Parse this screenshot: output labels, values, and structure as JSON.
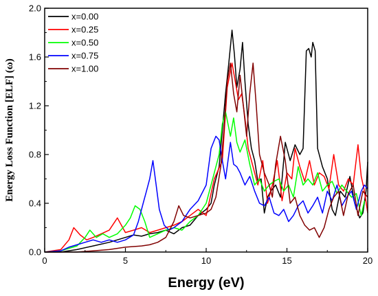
{
  "chart_data": {
    "type": "line",
    "title": "",
    "xlabel": "Energy (eV)",
    "ylabel": "Energy Loss Function [ELF] (ω)",
    "xlim": [
      0,
      20
    ],
    "ylim": [
      0,
      2.0
    ],
    "x_ticks": [
      0,
      5,
      10,
      15,
      20
    ],
    "x_tick_labels": [
      "0",
      "5",
      "10",
      "15",
      "20"
    ],
    "y_ticks": [
      0.0,
      0.4,
      0.8,
      1.2,
      1.6,
      2.0
    ],
    "y_tick_labels": [
      "0.0",
      "0.4",
      "0.8",
      "1.2",
      "1.6",
      "2.0"
    ],
    "grid": false,
    "legend_position": "top-left",
    "series": [
      {
        "name": "x=0.00",
        "color": "#000000",
        "x": [
          0,
          1,
          2,
          3,
          4,
          5,
          5.5,
          6,
          6.5,
          7,
          7.5,
          8,
          8.5,
          9,
          9.5,
          10,
          10.3,
          10.5,
          10.8,
          11.0,
          11.2,
          11.4,
          11.6,
          11.75,
          11.9,
          12.1,
          12.25,
          12.4,
          12.6,
          12.8,
          13.0,
          13.2,
          13.4,
          13.6,
          13.8,
          14.0,
          14.3,
          14.6,
          14.9,
          15.2,
          15.5,
          15.8,
          16.0,
          16.2,
          16.35,
          16.5,
          16.6,
          16.75,
          16.9,
          17.2,
          17.5,
          17.8,
          18.0,
          18.3,
          18.6,
          18.9,
          19.2,
          19.5,
          19.7,
          19.9,
          20.0
        ],
        "y": [
          0.0,
          0.0,
          0.02,
          0.05,
          0.08,
          0.12,
          0.14,
          0.13,
          0.15,
          0.16,
          0.18,
          0.15,
          0.2,
          0.22,
          0.3,
          0.35,
          0.4,
          0.55,
          0.7,
          1.0,
          1.3,
          1.55,
          1.82,
          1.62,
          1.35,
          1.5,
          1.72,
          1.4,
          1.05,
          0.85,
          0.75,
          0.58,
          0.6,
          0.32,
          0.45,
          0.5,
          0.55,
          0.45,
          0.9,
          0.75,
          0.88,
          0.8,
          0.85,
          1.65,
          1.67,
          1.6,
          1.72,
          1.65,
          0.85,
          0.7,
          0.6,
          0.35,
          0.3,
          0.5,
          0.45,
          0.62,
          0.4,
          0.28,
          0.32,
          0.5,
          0.74
        ]
      },
      {
        "name": "x=0.25",
        "color": "#ff0000",
        "x": [
          0,
          1,
          1.5,
          1.8,
          2.2,
          2.6,
          3.0,
          3.5,
          4.0,
          4.5,
          5.0,
          5.5,
          6.0,
          6.5,
          7.0,
          7.5,
          8.0,
          8.5,
          9.0,
          9.5,
          10.0,
          10.5,
          11.0,
          11.3,
          11.6,
          11.8,
          12.0,
          12.2,
          12.4,
          12.6,
          12.9,
          13.2,
          13.5,
          13.8,
          14.1,
          14.4,
          14.7,
          15.0,
          15.3,
          15.5,
          15.8,
          16.1,
          16.4,
          16.7,
          17.0,
          17.3,
          17.6,
          17.9,
          18.2,
          18.5,
          18.8,
          19.1,
          19.4,
          19.6,
          19.8,
          20.0
        ],
        "y": [
          0.0,
          0.02,
          0.1,
          0.2,
          0.14,
          0.1,
          0.12,
          0.15,
          0.18,
          0.28,
          0.16,
          0.18,
          0.2,
          0.16,
          0.18,
          0.2,
          0.22,
          0.25,
          0.3,
          0.35,
          0.3,
          0.6,
          0.75,
          1.35,
          1.55,
          1.4,
          1.25,
          1.3,
          1.1,
          0.85,
          0.7,
          0.55,
          0.75,
          0.4,
          0.55,
          0.75,
          0.42,
          0.65,
          0.6,
          0.85,
          0.7,
          0.58,
          0.75,
          0.55,
          0.65,
          0.62,
          0.52,
          0.8,
          0.55,
          0.5,
          0.6,
          0.55,
          0.88,
          0.62,
          0.5,
          0.32
        ]
      },
      {
        "name": "x=0.50",
        "color": "#00ff00",
        "x": [
          0,
          1,
          2,
          2.5,
          2.8,
          3.2,
          3.6,
          4.0,
          4.5,
          5.0,
          5.3,
          5.6,
          5.9,
          6.2,
          6.5,
          7.0,
          7.5,
          8.0,
          8.5,
          9.0,
          9.5,
          10.0,
          10.5,
          10.8,
          11.0,
          11.2,
          11.5,
          11.7,
          11.9,
          12.1,
          12.4,
          12.7,
          13.0,
          13.3,
          13.6,
          13.9,
          14.2,
          14.5,
          14.8,
          15.1,
          15.4,
          15.7,
          16.0,
          16.3,
          16.6,
          16.9,
          17.2,
          17.5,
          17.8,
          18.1,
          18.4,
          18.7,
          19.0,
          19.3,
          19.6,
          19.8
        ],
        "y": [
          0.0,
          0.01,
          0.05,
          0.12,
          0.18,
          0.12,
          0.15,
          0.12,
          0.15,
          0.22,
          0.28,
          0.38,
          0.35,
          0.25,
          0.12,
          0.15,
          0.18,
          0.2,
          0.18,
          0.25,
          0.3,
          0.4,
          0.65,
          0.8,
          1.05,
          1.15,
          0.95,
          1.1,
          0.9,
          0.82,
          0.92,
          0.72,
          0.55,
          0.6,
          0.5,
          0.55,
          0.58,
          0.6,
          0.5,
          0.55,
          0.45,
          0.7,
          0.55,
          0.6,
          0.55,
          0.65,
          0.5,
          0.55,
          0.58,
          0.48,
          0.55,
          0.5,
          0.45,
          0.48,
          0.3,
          0.42
        ]
      },
      {
        "name": "x=0.75",
        "color": "#0000ff",
        "x": [
          0,
          1,
          1.5,
          2.0,
          2.5,
          3.0,
          3.5,
          4.0,
          4.5,
          5.0,
          5.5,
          5.8,
          6.1,
          6.3,
          6.5,
          6.7,
          6.9,
          7.1,
          7.4,
          7.7,
          8.0,
          8.5,
          9.0,
          9.5,
          10.0,
          10.3,
          10.6,
          10.8,
          11.0,
          11.2,
          11.5,
          11.7,
          11.9,
          12.1,
          12.4,
          12.7,
          13.0,
          13.3,
          13.6,
          13.9,
          14.2,
          14.5,
          14.8,
          15.1,
          15.4,
          15.7,
          16.0,
          16.3,
          16.6,
          16.9,
          17.2,
          17.5,
          17.8,
          18.1,
          18.4,
          18.7,
          19.0,
          19.3,
          19.6,
          19.8,
          20.0
        ],
        "y": [
          0.0,
          0.01,
          0.04,
          0.06,
          0.08,
          0.1,
          0.08,
          0.1,
          0.08,
          0.1,
          0.14,
          0.25,
          0.4,
          0.5,
          0.6,
          0.75,
          0.55,
          0.35,
          0.22,
          0.18,
          0.2,
          0.25,
          0.35,
          0.42,
          0.55,
          0.85,
          0.95,
          0.92,
          0.75,
          0.6,
          0.9,
          0.72,
          0.7,
          0.65,
          0.55,
          0.62,
          0.5,
          0.4,
          0.38,
          0.45,
          0.32,
          0.3,
          0.35,
          0.25,
          0.3,
          0.38,
          0.42,
          0.32,
          0.38,
          0.45,
          0.32,
          0.5,
          0.42,
          0.55,
          0.38,
          0.45,
          0.5,
          0.35,
          0.5,
          0.55,
          0.52
        ]
      },
      {
        "name": "x=1.00",
        "color": "#800000",
        "x": [
          0,
          1,
          2,
          3,
          4,
          5,
          6,
          6.5,
          7.0,
          7.5,
          8.0,
          8.3,
          8.6,
          9.0,
          9.5,
          10.0,
          10.3,
          10.6,
          10.9,
          11.1,
          11.3,
          11.5,
          11.7,
          11.9,
          12.1,
          12.3,
          12.5,
          12.7,
          12.9,
          13.1,
          13.3,
          13.6,
          13.9,
          14.1,
          14.3,
          14.6,
          14.9,
          15.2,
          15.5,
          15.8,
          16.1,
          16.4,
          16.7,
          17.0,
          17.3,
          17.6,
          17.9,
          18.2,
          18.5,
          18.8,
          19.1,
          19.4,
          19.7,
          20.0
        ],
        "y": [
          0.0,
          0.0,
          0.0,
          0.01,
          0.02,
          0.04,
          0.05,
          0.06,
          0.08,
          0.12,
          0.25,
          0.38,
          0.3,
          0.28,
          0.3,
          0.32,
          0.35,
          0.45,
          0.7,
          1.0,
          1.4,
          1.55,
          1.3,
          1.15,
          1.45,
          1.2,
          0.95,
          1.3,
          1.55,
          1.2,
          0.8,
          0.65,
          0.55,
          0.45,
          0.72,
          0.95,
          0.75,
          0.4,
          0.45,
          0.3,
          0.22,
          0.18,
          0.2,
          0.12,
          0.2,
          0.35,
          0.45,
          0.5,
          0.3,
          0.48,
          0.55,
          0.3,
          0.5,
          0.45
        ]
      }
    ]
  }
}
